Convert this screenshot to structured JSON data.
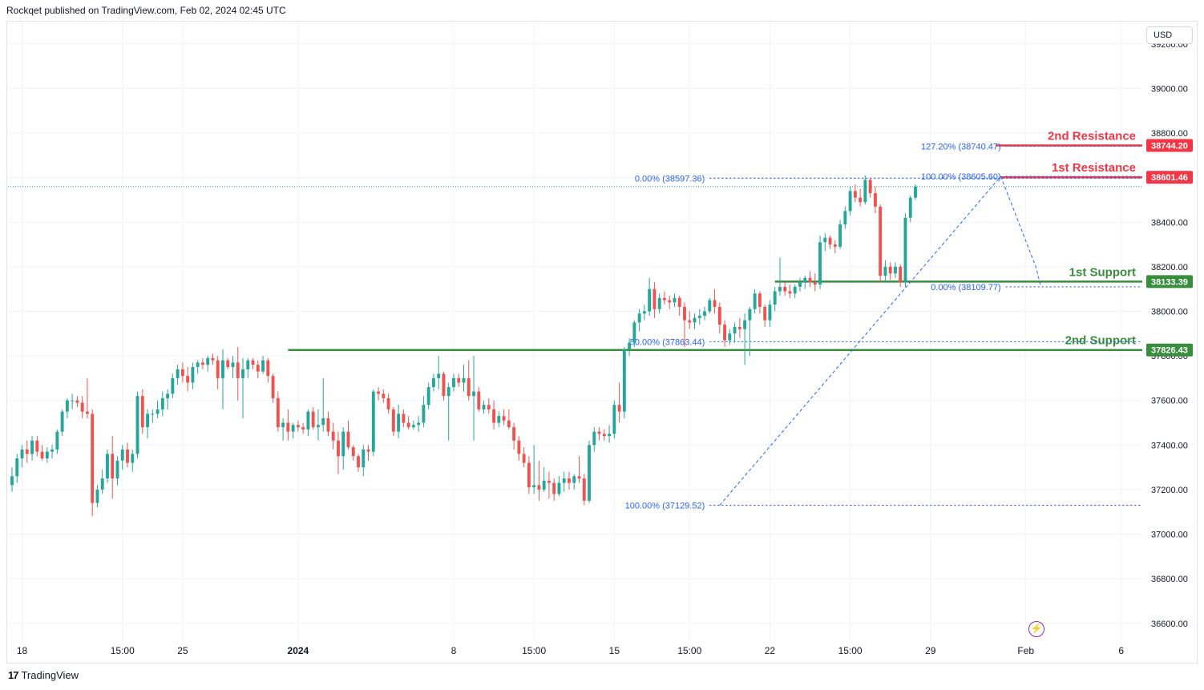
{
  "header": {
    "publisher": "Rockqet published on TradingView.com, Feb 02, 2024 02:45 UTC"
  },
  "currency_button": "USD",
  "footer": {
    "logo_mark": "17",
    "logo_text": "TradingView"
  },
  "colors": {
    "up": "#26a69a",
    "down": "#ef5350",
    "resistance": "#f23645",
    "support": "#388e3c",
    "fib": "#2962ff",
    "grid": "#f0f3fa"
  },
  "chart_data": {
    "type": "candlestick",
    "ylim": [
      36520,
      39300
    ],
    "y_ticks": [
      "36600.00",
      "36800.00",
      "37000.00",
      "37200.00",
      "37400.00",
      "37600.00",
      "37800.00",
      "38000.00",
      "38200.00",
      "38400.00",
      "38600.00",
      "38800.00",
      "39000.00",
      "39200.00"
    ],
    "x_ticks": [
      {
        "label": "18",
        "i": 2
      },
      {
        "label": "15:00",
        "i": 22
      },
      {
        "label": "25",
        "i": 34
      },
      {
        "label": "2024",
        "i": 57,
        "bold": true
      },
      {
        "label": "8",
        "i": 88
      },
      {
        "label": "15:00",
        "i": 104
      },
      {
        "label": "15",
        "i": 120
      },
      {
        "label": "15:00",
        "i": 135
      },
      {
        "label": "22",
        "i": 151
      },
      {
        "label": "15:00",
        "i": 167
      },
      {
        "label": "29",
        "i": 183
      },
      {
        "label": "Feb",
        "i": 202
      },
      {
        "label": "6",
        "i": 221
      }
    ],
    "x_span": 226,
    "horizontal_levels": [
      {
        "label": "2nd Resistance",
        "price": "38744.20",
        "value": 38744.2,
        "color": "#f23645",
        "from_i": 196
      },
      {
        "label": "1st Resistance",
        "price": "38601.46",
        "value": 38601.46,
        "color": "#f23645",
        "from_i": 197
      },
      {
        "label": "1st Support",
        "price": "38133.39",
        "value": 38133.39,
        "color": "#388e3c",
        "from_i": 152
      },
      {
        "label": "2nd Support",
        "price": "37826.43",
        "value": 37826.43,
        "color": "#388e3c",
        "from_i": 55
      }
    ],
    "fib_levels": [
      {
        "label": "127.20% (38740.47)",
        "value": 38740.47,
        "from_i": 198
      },
      {
        "label": "100.00% (38605.60)",
        "value": 38605.6,
        "from_i": 198
      },
      {
        "label": "0.00% (38597.36)",
        "value": 38597.36,
        "from_i": 139
      },
      {
        "label": "0.00% (38109.77)",
        "value": 38109.77,
        "from_i": 198
      },
      {
        "label": "50.00% (37863.44)",
        "value": 37863.44,
        "from_i": 139
      },
      {
        "label": "100.00% (37129.52)",
        "value": 37129.52,
        "from_i": 139
      }
    ],
    "last_price": 38560,
    "ohlc": [
      [
        37220,
        37300,
        37190,
        37260
      ],
      [
        37260,
        37360,
        37230,
        37340
      ],
      [
        37340,
        37400,
        37300,
        37380
      ],
      [
        37380,
        37420,
        37320,
        37360
      ],
      [
        37360,
        37440,
        37330,
        37420
      ],
      [
        37420,
        37440,
        37350,
        37370
      ],
      [
        37370,
        37400,
        37330,
        37340
      ],
      [
        37340,
        37390,
        37320,
        37370
      ],
      [
        37370,
        37400,
        37340,
        37380
      ],
      [
        37380,
        37470,
        37360,
        37460
      ],
      [
        37460,
        37560,
        37440,
        37550
      ],
      [
        37550,
        37610,
        37520,
        37600
      ],
      [
        37600,
        37630,
        37560,
        37600
      ],
      [
        37600,
        37620,
        37570,
        37590
      ],
      [
        37590,
        37620,
        37520,
        37550
      ],
      [
        37550,
        37700,
        37520,
        37540
      ],
      [
        37540,
        37560,
        37080,
        37140
      ],
      [
        37140,
        37220,
        37120,
        37200
      ],
      [
        37200,
        37290,
        37180,
        37250
      ],
      [
        37250,
        37380,
        37230,
        37360
      ],
      [
        37360,
        37440,
        37160,
        37250
      ],
      [
        37250,
        37350,
        37220,
        37330
      ],
      [
        37330,
        37400,
        37290,
        37380
      ],
      [
        37380,
        37410,
        37300,
        37320
      ],
      [
        37320,
        37380,
        37280,
        37360
      ],
      [
        37360,
        37640,
        37340,
        37620
      ],
      [
        37620,
        37650,
        37450,
        37480
      ],
      [
        37480,
        37560,
        37430,
        37540
      ],
      [
        37540,
        37560,
        37500,
        37540
      ],
      [
        37540,
        37600,
        37520,
        37560
      ],
      [
        37560,
        37640,
        37530,
        37610
      ],
      [
        37610,
        37650,
        37560,
        37630
      ],
      [
        37630,
        37720,
        37610,
        37700
      ],
      [
        37700,
        37760,
        37670,
        37740
      ],
      [
        37740,
        37770,
        37680,
        37710
      ],
      [
        37710,
        37750,
        37640,
        37680
      ],
      [
        37680,
        37770,
        37650,
        37750
      ],
      [
        37750,
        37780,
        37720,
        37770
      ],
      [
        37770,
        37790,
        37740,
        37760
      ],
      [
        37760,
        37800,
        37730,
        37790
      ],
      [
        37790,
        37810,
        37760,
        37780
      ],
      [
        37780,
        37800,
        37650,
        37700
      ],
      [
        37700,
        37830,
        37560,
        37780
      ],
      [
        37780,
        37790,
        37740,
        37750
      ],
      [
        37750,
        37800,
        37700,
        37770
      ],
      [
        37770,
        37840,
        37600,
        37700
      ],
      [
        37700,
        37790,
        37520,
        37740
      ],
      [
        37740,
        37790,
        37700,
        37780
      ],
      [
        37780,
        37790,
        37740,
        37760
      ],
      [
        37760,
        37780,
        37700,
        37730
      ],
      [
        37730,
        37800,
        37720,
        37780
      ],
      [
        37780,
        37790,
        37680,
        37710
      ],
      [
        37710,
        37720,
        37590,
        37610
      ],
      [
        37610,
        37640,
        37460,
        37480
      ],
      [
        37480,
        37520,
        37420,
        37500
      ],
      [
        37500,
        37560,
        37420,
        37460
      ],
      [
        37460,
        37500,
        37430,
        37490
      ],
      [
        37490,
        37510,
        37460,
        37480
      ],
      [
        37480,
        37500,
        37450,
        37470
      ],
      [
        37470,
        37560,
        37440,
        37550
      ],
      [
        37550,
        37570,
        37470,
        37480
      ],
      [
        37480,
        37560,
        37420,
        37490
      ],
      [
        37490,
        37700,
        37460,
        37520
      ],
      [
        37520,
        37550,
        37440,
        37460
      ],
      [
        37460,
        37500,
        37380,
        37420
      ],
      [
        37420,
        37460,
        37270,
        37350
      ],
      [
        37350,
        37480,
        37290,
        37460
      ],
      [
        37460,
        37510,
        37380,
        37390
      ],
      [
        37390,
        37400,
        37330,
        37350
      ],
      [
        37350,
        37360,
        37280,
        37300
      ],
      [
        37300,
        37400,
        37260,
        37380
      ],
      [
        37380,
        37400,
        37330,
        37370
      ],
      [
        37370,
        37650,
        37350,
        37640
      ],
      [
        37640,
        37660,
        37600,
        37630
      ],
      [
        37630,
        37650,
        37590,
        37610
      ],
      [
        37610,
        37630,
        37540,
        37560
      ],
      [
        37560,
        37570,
        37440,
        37460
      ],
      [
        37460,
        37580,
        37430,
        37540
      ],
      [
        37540,
        37560,
        37480,
        37500
      ],
      [
        37500,
        37530,
        37470,
        37480
      ],
      [
        37480,
        37510,
        37470,
        37490
      ],
      [
        37490,
        37530,
        37460,
        37500
      ],
      [
        37500,
        37620,
        37480,
        37580
      ],
      [
        37580,
        37680,
        37560,
        37660
      ],
      [
        37660,
        37720,
        37640,
        37700
      ],
      [
        37700,
        37800,
        37650,
        37720
      ],
      [
        37720,
        37730,
        37600,
        37620
      ],
      [
        37620,
        37680,
        37420,
        37660
      ],
      [
        37660,
        37720,
        37640,
        37700
      ],
      [
        37700,
        37720,
        37660,
        37680
      ],
      [
        37680,
        37760,
        37640,
        37700
      ],
      [
        37700,
        37780,
        37600,
        37620
      ],
      [
        37620,
        37800,
        37420,
        37640
      ],
      [
        37640,
        37660,
        37550,
        37560
      ],
      [
        37560,
        37600,
        37540,
        37580
      ],
      [
        37580,
        37610,
        37540,
        37560
      ],
      [
        37560,
        37600,
        37470,
        37500
      ],
      [
        37500,
        37550,
        37480,
        37530
      ],
      [
        37530,
        37560,
        37490,
        37510
      ],
      [
        37510,
        37560,
        37470,
        37480
      ],
      [
        37480,
        37500,
        37380,
        37420
      ],
      [
        37420,
        37440,
        37330,
        37360
      ],
      [
        37360,
        37390,
        37300,
        37320
      ],
      [
        37320,
        37350,
        37180,
        37210
      ],
      [
        37210,
        37400,
        37180,
        37220
      ],
      [
        37220,
        37330,
        37150,
        37200
      ],
      [
        37200,
        37300,
        37190,
        37240
      ],
      [
        37240,
        37280,
        37160,
        37230
      ],
      [
        37230,
        37250,
        37150,
        37180
      ],
      [
        37180,
        37260,
        37170,
        37230
      ],
      [
        37230,
        37280,
        37190,
        37250
      ],
      [
        37250,
        37280,
        37200,
        37230
      ],
      [
        37230,
        37270,
        37200,
        37260
      ],
      [
        37260,
        37350,
        37230,
        37250
      ],
      [
        37250,
        37270,
        37130,
        37150
      ],
      [
        37150,
        37420,
        37140,
        37400
      ],
      [
        37400,
        37480,
        37370,
        37460
      ],
      [
        37460,
        37480,
        37420,
        37450
      ],
      [
        37450,
        37470,
        37420,
        37440
      ],
      [
        37440,
        37490,
        37410,
        37450
      ],
      [
        37450,
        37600,
        37430,
        37580
      ],
      [
        37580,
        37680,
        37500,
        37550
      ],
      [
        37550,
        37840,
        37520,
        37830
      ],
      [
        37830,
        37880,
        37800,
        37860
      ],
      [
        37860,
        37960,
        37840,
        37950
      ],
      [
        37950,
        38010,
        37910,
        37990
      ],
      [
        37990,
        38030,
        37960,
        38000
      ],
      [
        38000,
        38150,
        37980,
        38100
      ],
      [
        38100,
        38130,
        37970,
        38010
      ],
      [
        38010,
        38080,
        37990,
        38060
      ],
      [
        38060,
        38090,
        38030,
        38050
      ],
      [
        38050,
        38070,
        38010,
        38040
      ],
      [
        38040,
        38080,
        38020,
        38060
      ],
      [
        38060,
        38070,
        37980,
        38020
      ],
      [
        38020,
        38040,
        37840,
        37960
      ],
      [
        37960,
        38000,
        37920,
        37950
      ],
      [
        37950,
        37990,
        37920,
        37970
      ],
      [
        37970,
        38010,
        37940,
        37980
      ],
      [
        37980,
        38020,
        37960,
        38000
      ],
      [
        38000,
        38060,
        37990,
        38050
      ],
      [
        38050,
        38100,
        37990,
        38020
      ],
      [
        38020,
        38040,
        37900,
        37940
      ],
      [
        37940,
        37960,
        37840,
        37870
      ],
      [
        37870,
        37920,
        37850,
        37900
      ],
      [
        37900,
        37950,
        37860,
        37930
      ],
      [
        37930,
        37970,
        37880,
        37920
      ],
      [
        37920,
        37990,
        37760,
        37960
      ],
      [
        37960,
        38020,
        37800,
        38010
      ],
      [
        38010,
        38100,
        37990,
        38080
      ],
      [
        38080,
        38090,
        37990,
        38020
      ],
      [
        38020,
        38030,
        37930,
        37960
      ],
      [
        37960,
        38050,
        37930,
        38030
      ],
      [
        38030,
        38110,
        38000,
        38090
      ],
      [
        38090,
        38240,
        38070,
        38110
      ],
      [
        38110,
        38130,
        38070,
        38090
      ],
      [
        38090,
        38120,
        38060,
        38080
      ],
      [
        38080,
        38120,
        38060,
        38110
      ],
      [
        38110,
        38150,
        38090,
        38130
      ],
      [
        38130,
        38160,
        38100,
        38150
      ],
      [
        38150,
        38180,
        38110,
        38130
      ],
      [
        38130,
        38170,
        38090,
        38120
      ],
      [
        38120,
        38340,
        38100,
        38310
      ],
      [
        38310,
        38350,
        38270,
        38330
      ],
      [
        38330,
        38340,
        38280,
        38300
      ],
      [
        38300,
        38320,
        38260,
        38290
      ],
      [
        38290,
        38410,
        38280,
        38390
      ],
      [
        38390,
        38470,
        38370,
        38450
      ],
      [
        38450,
        38560,
        38430,
        38540
      ],
      [
        38540,
        38570,
        38490,
        38510
      ],
      [
        38510,
        38550,
        38470,
        38490
      ],
      [
        38490,
        38610,
        38480,
        38590
      ],
      [
        38590,
        38600,
        38510,
        38530
      ],
      [
        38530,
        38560,
        38440,
        38470
      ],
      [
        38470,
        38480,
        38130,
        38160
      ],
      [
        38160,
        38230,
        38130,
        38200
      ],
      [
        38200,
        38220,
        38140,
        38170
      ],
      [
        38170,
        38220,
        38150,
        38200
      ],
      [
        38200,
        38210,
        38110,
        38130
      ],
      [
        38130,
        38440,
        38110,
        38420
      ],
      [
        38420,
        38520,
        38400,
        38510
      ],
      [
        38510,
        38570,
        38500,
        38560
      ]
    ]
  }
}
